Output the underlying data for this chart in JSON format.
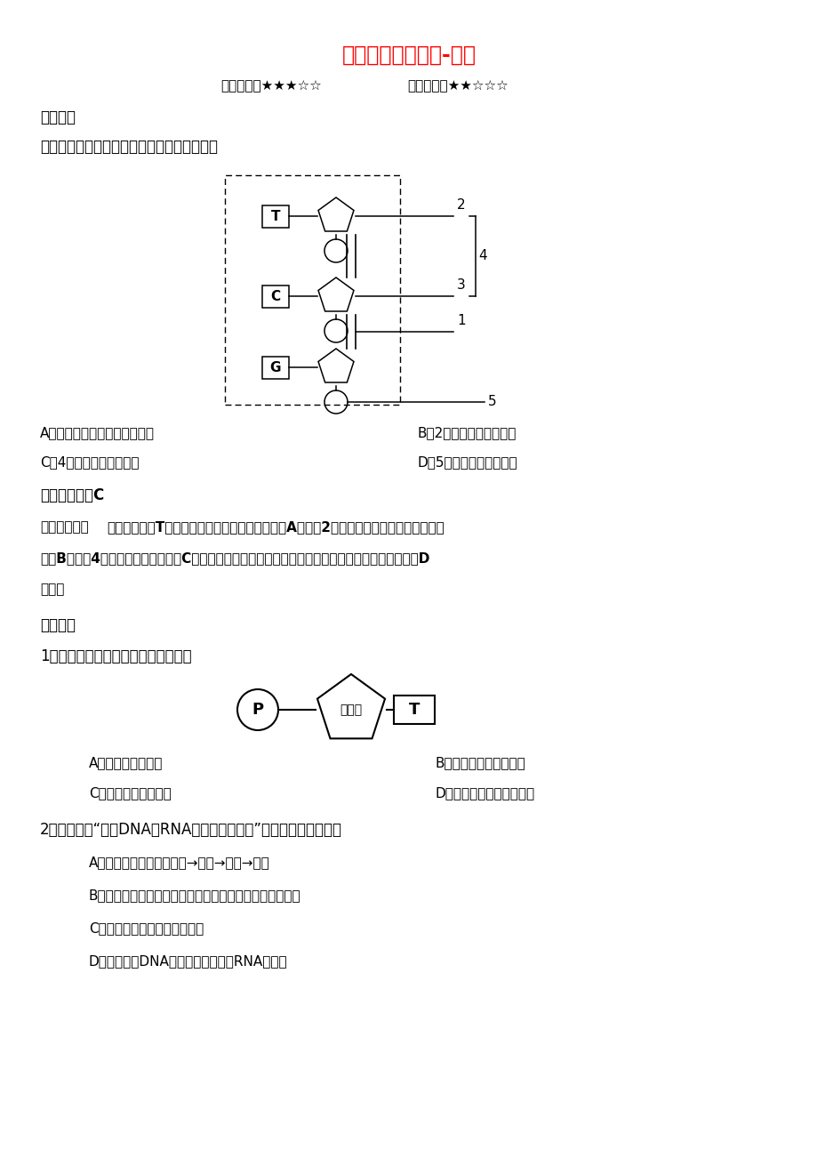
{
  "title": "遗传信息的携带者-核酸",
  "subtitle_freq": "高考频度：★★★☆☆",
  "subtitle_diff": "难易程度：★★☆☆☆",
  "section1": "典例在线",
  "question1": "如图是某核苷酸长链的示意图，下列正确的是",
  "answer_A1": "A．图中所示为核糖核苷酸长链",
  "answer_B1": "B．2可以为细胞提供能量",
  "answer_C1": "C．4为胞嘧啶脱氧核苷酸",
  "answer_D1": "D．5主要分布在细胞质中",
  "reference_answer": "【参考答案】C",
  "analysis_label": "【试题解析】",
  "analysis_line1": "图中包含碱基T，故所示为脱氧核糖核苷酸长链，A错误；2为脱氧核糖，不能为细胞提供能",
  "analysis_line2": "量，B错误；4为胞嘧啶脱氧核苷酸，C正确；由脱氧核苷酸构成的脱氧核糖核酸主要分布在细胞核中，D",
  "analysis_line3": "错误。",
  "section2": "学霸推荐",
  "question2": "1．下图所代表的有机小分子的名称是",
  "answer_A2": "A．胸腺嘧啶核苷酸",
  "answer_B2": "B．胸腺嘧啶脱氧核苷酸",
  "answer_C2": "C．胸腺嘧啶核糖核酸",
  "answer_D2": "D．胸腺嘧啶脱氧核糖核酸",
  "question3": "2．下列关于“观察DNA和RNA在细胞中的分布”实验，叙述正确的是",
  "answer_A3": "A．实验步骤为：制作装片→水解→染色→观察",
  "answer_B3": "B．可以用紫色洋葱鳞片叶外表皮细胞替代人口腔上皮细胞",
  "answer_C3": "C．使用盐酸只是为了杀死细菌",
  "answer_D3": "D．甲基绿使DNA呈绿色，吡罗红使RNA呈红色",
  "bg_color": "#ffffff",
  "title_color": "#ff0000",
  "text_color": "#000000"
}
